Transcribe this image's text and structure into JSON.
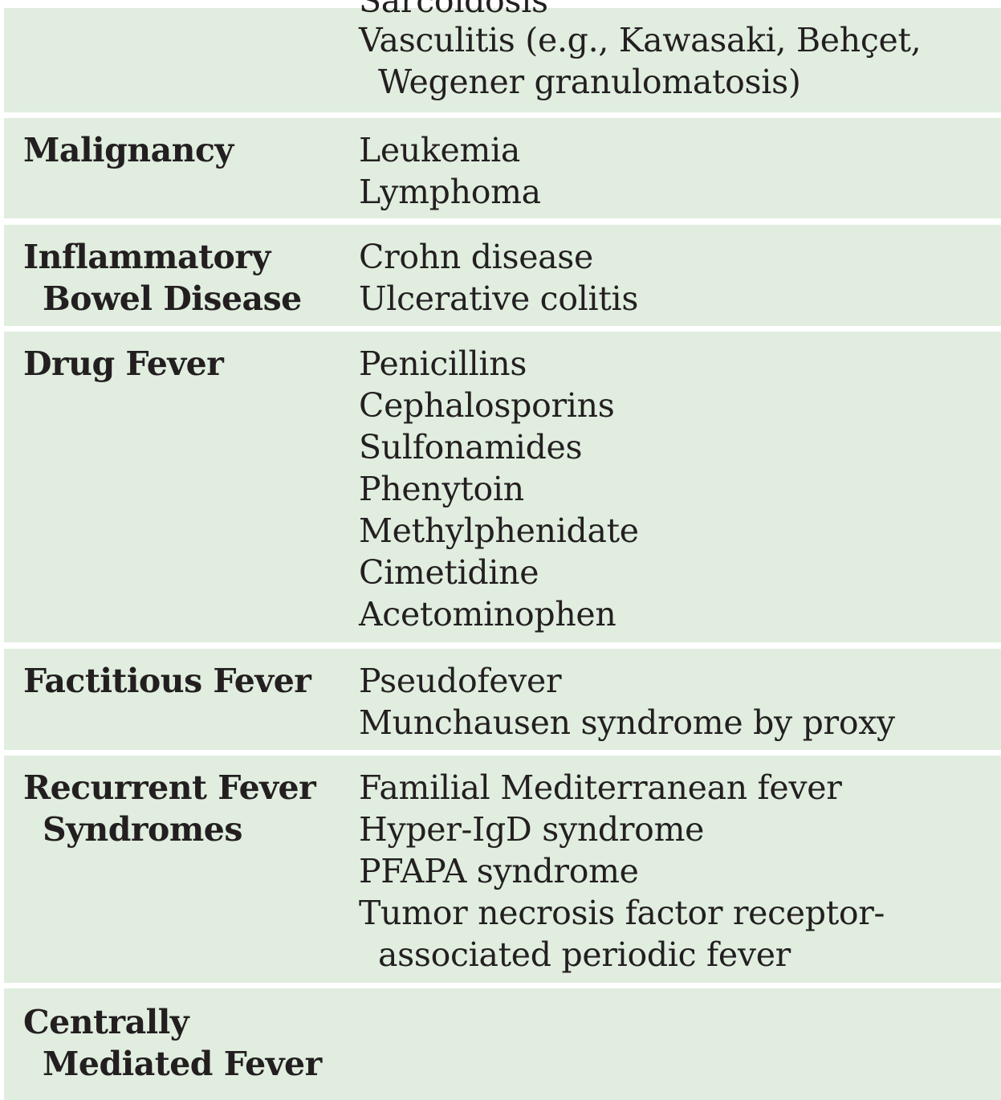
{
  "rows": [
    {
      "category": [],
      "items": [
        "Sarcoidosis",
        "Vasculitis (e.g., Kawasaki, Behçet,",
        "Wegener granulomatosis)"
      ]
    },
    {
      "category": [
        "Malignancy"
      ],
      "items": [
        "Leukemia",
        "Lymphoma"
      ]
    },
    {
      "category": [
        "Inflammatory",
        "Bowel Disease"
      ],
      "items": [
        "Crohn disease",
        "Ulcerative colitis"
      ]
    },
    {
      "category": [
        "Drug Fever"
      ],
      "items": [
        "Penicillins",
        "Cephalosporins",
        "Sulfonamides",
        "Phenytoin",
        "Methylphenidate",
        "Cimetidine",
        "Acetominophen"
      ]
    },
    {
      "category": [
        "Factitious Fever"
      ],
      "items": [
        "Pseudofever",
        "Munchausen syndrome by proxy"
      ]
    },
    {
      "category": [
        "Recurrent Fever",
        "Syndromes"
      ],
      "items": [
        "Familial Mediterranean fever",
        "Hyper-IgD syndrome",
        "PFAPA syndrome",
        "Tumor necrosis factor receptor-",
        "associated periodic fever"
      ]
    },
    {
      "category": [
        "Centrally",
        "Mediated Fever"
      ],
      "items": []
    }
  ]
}
